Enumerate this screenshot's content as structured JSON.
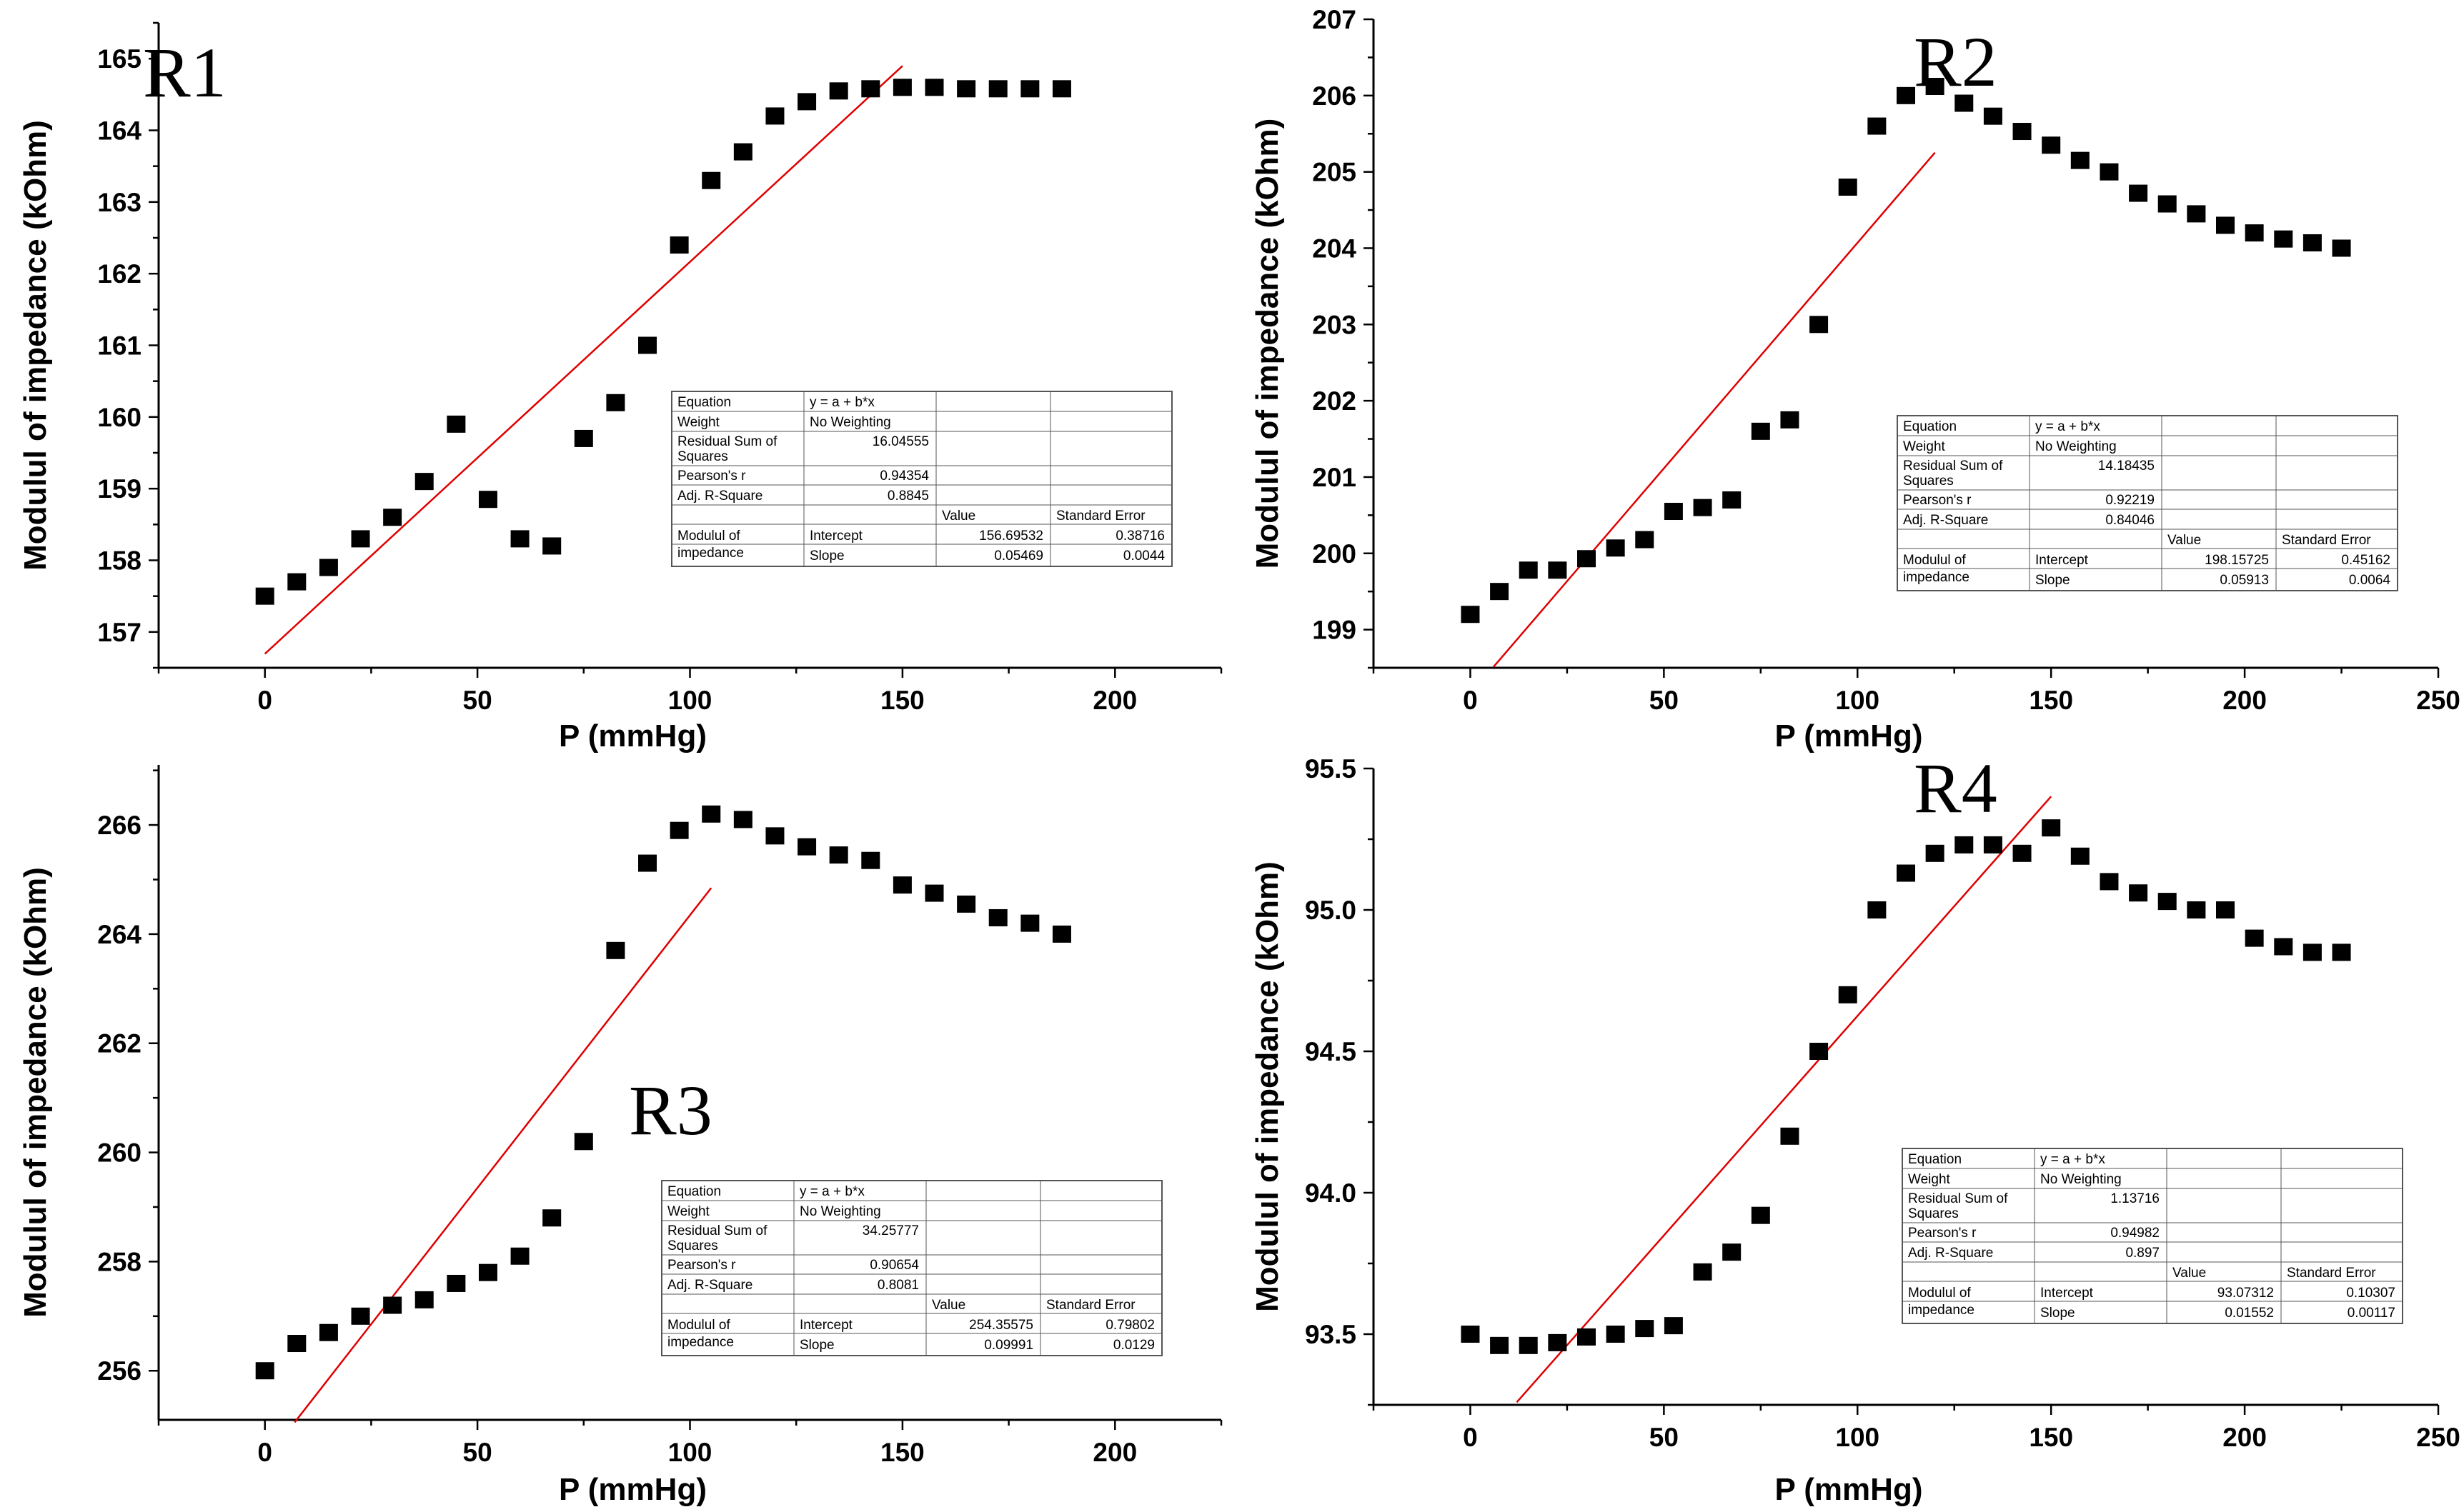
{
  "colors": {
    "axis": "#000000",
    "points": "#000000",
    "fit_line": "#e00000",
    "table_border": "#555555"
  },
  "stats_labels": {
    "equation": "Equation",
    "weight": "Weight",
    "rss_line1": "Residual Sum of",
    "rss_line2": "Squares",
    "pearson": "Pearson's r",
    "adj_r2": "Adj. R-Square",
    "value": "Value",
    "std_error": "Standard Error",
    "modulul_line1": "Modulul of",
    "modulul_line2": "impedance",
    "intercept": "Intercept",
    "slope": "Slope",
    "equation_value": "y = a + b*x",
    "weight_value": "No Weighting"
  },
  "chart_data": [
    {
      "id": "R1",
      "type": "scatter",
      "tag": "R1",
      "xlabel": "P (mmHg)",
      "ylabel": "Modulul of impedance (kOhm)",
      "xlim": [
        -25,
        225
      ],
      "ylim": [
        156.5,
        165.5
      ],
      "xticks": [
        0,
        50,
        100,
        150,
        200
      ],
      "xtick_labels": [
        "0",
        "50",
        "100",
        "150",
        "200"
      ],
      "yticks": [
        157,
        158,
        159,
        160,
        161,
        162,
        163,
        164,
        165
      ],
      "ytick_labels": [
        "157",
        "158",
        "159",
        "160",
        "161",
        "162",
        "163",
        "164",
        "165"
      ],
      "x": [
        0,
        7.5,
        15,
        22.5,
        30,
        37.5,
        45,
        52.5,
        60,
        67.5,
        75,
        82.5,
        90,
        97.5,
        105,
        112.5,
        120,
        127.5,
        135,
        142.5,
        150,
        157.5,
        165,
        172.5,
        180,
        187.5
      ],
      "y": [
        157.5,
        157.7,
        157.9,
        158.3,
        158.6,
        159.1,
        159.9,
        158.85,
        158.3,
        158.2,
        159.7,
        160.2,
        161.0,
        162.4,
        163.3,
        163.7,
        164.2,
        164.4,
        164.55,
        164.58,
        164.6,
        164.6,
        164.58,
        164.58,
        164.58,
        164.58
      ],
      "fit": {
        "x": [
          0,
          150
        ],
        "intercept": 156.69532,
        "slope": 0.05469
      },
      "stats": {
        "rss": "16.04555",
        "pearson": "0.94354",
        "adj_r2": "0.8845",
        "intercept": "156.69532",
        "intercept_se": "0.38716",
        "slope": "0.05469",
        "slope_se": "0.0044"
      }
    },
    {
      "id": "R2",
      "type": "scatter",
      "tag": "R2",
      "xlabel": "P (mmHg)",
      "ylabel": "Modulul of impedance (kOhm)",
      "xlim": [
        -25,
        250
      ],
      "ylim": [
        198.5,
        207
      ],
      "xticks": [
        0,
        50,
        100,
        150,
        200,
        250
      ],
      "xtick_labels": [
        "0",
        "50",
        "100",
        "150",
        "200",
        "250"
      ],
      "yticks": [
        199,
        200,
        201,
        202,
        203,
        204,
        205,
        206,
        207
      ],
      "ytick_labels": [
        "199",
        "200",
        "201",
        "202",
        "203",
        "204",
        "205",
        "206",
        "207"
      ],
      "x": [
        0,
        7.5,
        15,
        22.5,
        30,
        37.5,
        45,
        52.5,
        60,
        67.5,
        75,
        82.5,
        90,
        97.5,
        105,
        112.5,
        120,
        127.5,
        135,
        142.5,
        150,
        157.5,
        165,
        172.5,
        180,
        187.5,
        195,
        202.5,
        210,
        217.5,
        225
      ],
      "y": [
        199.2,
        199.5,
        199.78,
        199.78,
        199.93,
        200.07,
        200.18,
        200.55,
        200.6,
        200.7,
        201.6,
        201.75,
        203.0,
        204.8,
        205.6,
        206.0,
        206.12,
        205.9,
        205.73,
        205.53,
        205.35,
        205.15,
        205.0,
        204.72,
        204.58,
        204.45,
        204.3,
        204.2,
        204.12,
        204.07,
        204.0
      ],
      "fit": {
        "x": [
          6,
          120
        ],
        "intercept": 198.15725,
        "slope": 0.05913
      },
      "stats": {
        "rss": "14.18435",
        "pearson": "0.92219",
        "adj_r2": "0.84046",
        "intercept": "198.15725",
        "intercept_se": "0.45162",
        "slope": "0.05913",
        "slope_se": "0.0064"
      }
    },
    {
      "id": "R3",
      "type": "scatter",
      "tag": "R3",
      "xlabel": "P (mmHg)",
      "ylabel": "Modulul of impedance (kOhm)",
      "xlim": [
        -25,
        225
      ],
      "ylim": [
        255.1,
        267.1
      ],
      "xticks": [
        0,
        50,
        100,
        150,
        200
      ],
      "xtick_labels": [
        "0",
        "50",
        "100",
        "150",
        "200"
      ],
      "yticks": [
        256,
        258,
        260,
        262,
        264,
        266
      ],
      "ytick_labels": [
        "256",
        "258",
        "260",
        "262",
        "264",
        "266"
      ],
      "x": [
        0,
        7.5,
        15,
        22.5,
        30,
        37.5,
        45,
        52.5,
        60,
        67.5,
        75,
        82.5,
        90,
        97.5,
        105,
        112.5,
        120,
        127.5,
        135,
        142.5,
        150,
        157.5,
        165,
        172.5,
        180,
        187.5
      ],
      "y": [
        256.0,
        256.5,
        256.7,
        257.0,
        257.2,
        257.3,
        257.6,
        257.8,
        258.1,
        258.8,
        260.2,
        263.7,
        265.3,
        265.9,
        266.2,
        266.1,
        265.8,
        265.6,
        265.45,
        265.35,
        264.9,
        264.75,
        264.55,
        264.3,
        264.2,
        264.0
      ],
      "fit": {
        "x": [
          7,
          105
        ],
        "intercept": 254.35575,
        "slope": 0.09991
      },
      "stats": {
        "rss": "34.25777",
        "pearson": "0.90654",
        "adj_r2": "0.8081",
        "intercept": "254.35575",
        "intercept_se": "0.79802",
        "slope": "0.09991",
        "slope_se": "0.0129"
      }
    },
    {
      "id": "R4",
      "type": "scatter",
      "tag": "R4",
      "xlabel": "P (mmHg)",
      "ylabel": "Modulul of impedance (kOhm)",
      "xlim": [
        -25,
        250
      ],
      "ylim": [
        93.25,
        95.5
      ],
      "xticks": [
        0,
        50,
        100,
        150,
        200,
        250
      ],
      "xtick_labels": [
        "0",
        "50",
        "100",
        "150",
        "200",
        "250"
      ],
      "yticks": [
        93.5,
        94.0,
        94.5,
        95.0,
        95.5
      ],
      "ytick_labels": [
        "93.5",
        "94.0",
        "94.5",
        "95.0",
        "95.5"
      ],
      "x": [
        0,
        7.5,
        15,
        22.5,
        30,
        37.5,
        45,
        52.5,
        60,
        67.5,
        75,
        82.5,
        90,
        97.5,
        105,
        112.5,
        120,
        127.5,
        135,
        142.5,
        150,
        157.5,
        165,
        172.5,
        180,
        187.5,
        195,
        202.5,
        210,
        217.5,
        225
      ],
      "y": [
        93.5,
        93.46,
        93.46,
        93.47,
        93.49,
        93.5,
        93.52,
        93.53,
        93.72,
        93.79,
        93.92,
        94.2,
        94.5,
        94.7,
        95.0,
        95.13,
        95.2,
        95.23,
        95.23,
        95.2,
        95.29,
        95.19,
        95.1,
        95.06,
        95.03,
        95.0,
        95.0,
        94.9,
        94.87,
        94.85,
        94.85
      ],
      "fit": {
        "x": [
          12,
          150
        ],
        "intercept": 93.07312,
        "slope": 0.01552
      },
      "stats": {
        "rss": "1.13716",
        "pearson": "0.94982",
        "adj_r2": "0.897",
        "intercept": "93.07312",
        "intercept_se": "0.10307",
        "slope": "0.01552",
        "slope_se": "0.00117"
      }
    }
  ]
}
